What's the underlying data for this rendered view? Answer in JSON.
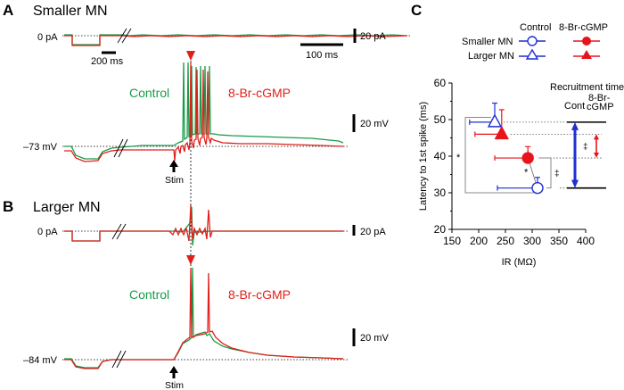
{
  "colors": {
    "control_trace": "#1a9a4a",
    "drug_trace": "#e0201a",
    "control_marker": "#1f2fd0",
    "drug_marker": "#e8141b",
    "axis": "#000000"
  },
  "panel_a": {
    "letter": "A",
    "title": "Smaller MN",
    "current_label": "0 pA",
    "voltage_label": "–73 mV",
    "scale_time_left": "200 ms",
    "scale_time_right": "100 ms",
    "scale_current": "20 pA",
    "scale_voltage": "20 mV",
    "control_label": "Control",
    "drug_label": "8-Br-cGMP",
    "stim_label": "Stim"
  },
  "panel_b": {
    "letter": "B",
    "title": "Larger MN",
    "current_label": "0 pA",
    "voltage_label": "–84 mV",
    "scale_current": "20 pA",
    "scale_voltage": "20 mV",
    "control_label": "Control",
    "drug_label": "8-Br-cGMP",
    "stim_label": "Stim"
  },
  "chart_data": {
    "type": "scatter",
    "panel_letter": "C",
    "title": "",
    "xlabel": "IR (MΩ)",
    "ylabel": "Latency to 1st spike (ms)",
    "xlim": [
      150,
      400
    ],
    "ylim": [
      20,
      60
    ],
    "xticks": [
      150,
      200,
      250,
      300,
      350,
      400
    ],
    "yticks": [
      20,
      30,
      40,
      50,
      60
    ],
    "legend": {
      "placement": "top",
      "column_headers": [
        "Control",
        "8-Br-cGMP"
      ],
      "rows": [
        "Smaller MN",
        "Larger MN"
      ]
    },
    "series": [
      {
        "name": "Larger MN Control",
        "marker": "open-triangle",
        "color": "#1f2fd0",
        "x": 230,
        "y": 49.3,
        "x_err": 47,
        "y_err": 5.2
      },
      {
        "name": "Larger MN 8-Br-cGMP",
        "marker": "filled-triangle",
        "color": "#e8141b",
        "x": 243,
        "y": 46.0,
        "x_err": 50,
        "y_err": 6.7
      },
      {
        "name": "Smaller MN 8-Br-cGMP",
        "marker": "filled-circle",
        "color": "#e8141b",
        "x": 292,
        "y": 39.5,
        "x_err": 62,
        "y_err": 3.1
      },
      {
        "name": "Smaller MN Control",
        "marker": "open-circle",
        "color": "#1f2fd0",
        "x": 310,
        "y": 31.3,
        "x_err": 75,
        "y_err": 2.9
      }
    ],
    "annotations": {
      "significance_star_1": "*",
      "significance_star_2": "*",
      "dagger_1": "‡",
      "dagger_2": "‡",
      "recruitment_title": "Recruitment time",
      "cont_label": "Cont",
      "drug_label_line1": "8-Br-",
      "drug_label_line2": "cGMP",
      "recruitment_control_range": [
        31.3,
        49.3
      ],
      "recruitment_drug_range": [
        39.5,
        46.0
      ]
    }
  }
}
